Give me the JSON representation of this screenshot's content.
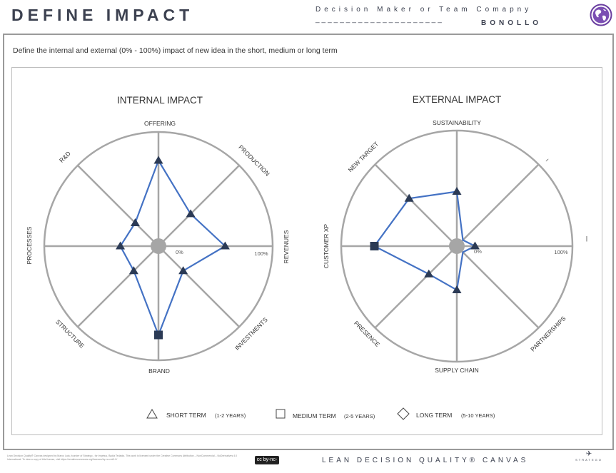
{
  "header": {
    "title": "DEFINE IMPACT",
    "decision_label": "Decision Maker or Team   Comapny",
    "decision_dashes": "_____________________",
    "company": "BONOLLO"
  },
  "subtitle": "Define the internal and external (0% - 100%) impact of new idea in the short, medium or long term",
  "internal": {
    "title": "INTERNAL IMPACT",
    "axes": [
      "OFFERING",
      "PRODUCTION",
      "REVENUES",
      "INVESTMENTS",
      "BRAND",
      "STRUCTURE",
      "PROCESSES",
      "R&D"
    ],
    "scale_min": "0%",
    "scale_max": "100%",
    "values": [
      0.73,
      0.35,
      0.55,
      0.25,
      0.76,
      0.25,
      0.28,
      0.23
    ],
    "markers": [
      "triangle",
      "triangle",
      "triangle",
      "triangle",
      "square",
      "triangle",
      "triangle",
      "triangle"
    ]
  },
  "external": {
    "title": "EXTERNAL IMPACT",
    "axes": [
      "SUSTAINABILITY",
      "–",
      "|",
      "PARTNERSHIPS",
      "SUPPLY CHAIN",
      "PRESENCE",
      "CUSTOMER XP",
      "NEW TARGET"
    ],
    "scale_min": "0%",
    "scale_max": "100%",
    "values": [
      0.43,
      0.0,
      0.09,
      0.0,
      0.33,
      0.29,
      0.69,
      0.55
    ],
    "markers": [
      "triangle",
      "none",
      "triangle",
      "none",
      "triangle",
      "triangle",
      "square",
      "triangle"
    ]
  },
  "legend": {
    "short": {
      "label": "SHORT TERM",
      "years": "(1-2 YEARS)"
    },
    "medium": {
      "label": "MEDIUM TERM",
      "years": "(2-5 YEARS)"
    },
    "long": {
      "label": "LONG TERM",
      "years": "(5-10 YEARS)"
    }
  },
  "footer": {
    "license_text": "Lean Decision Quality® Canvas designed by Marco Laia, founder of Stratego - for Impetus, Badia Tedalda. This work is licensed under the Creative Commons Attribution – NonCommercial – NoDerivatives 4.0 International. To view a copy of this license, visit https://creativecommons.org/licenses/by-nc-nd/4.0/",
    "cc_badge": "cc by-nc-nd",
    "brand": "LEAN DECISION QUALITY® CANVAS",
    "logo_name": "STRATEGO"
  },
  "colors": {
    "line": "#4472c4",
    "ring": "#a6a6a6",
    "marker": "#2b3a55",
    "center": "#a6a6a6"
  }
}
